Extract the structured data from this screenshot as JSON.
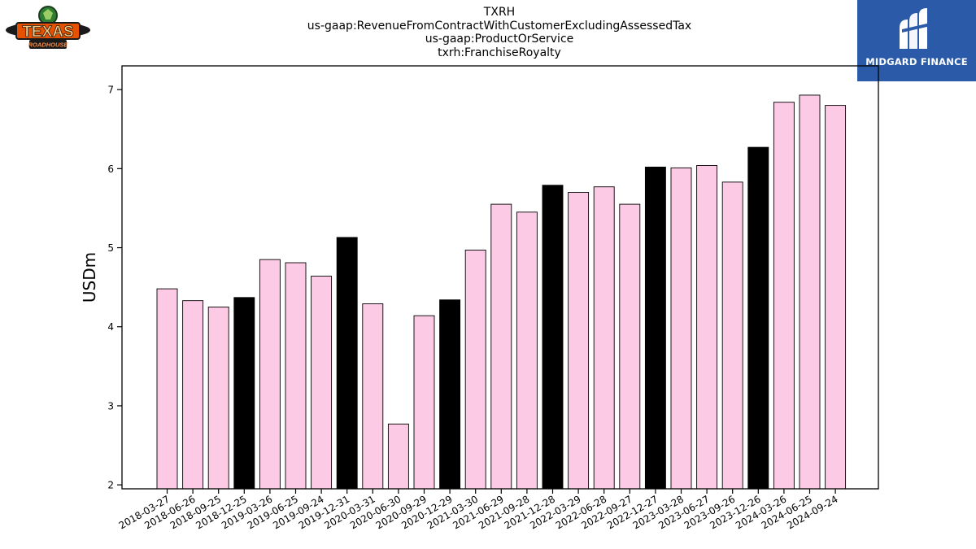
{
  "header": {
    "lines": [
      "TXRH",
      "us-gaap:RevenueFromContractWithCustomerExcludingAssessedTax",
      "us-gaap:ProductOrService",
      "txrh:FranchiseRoyalty"
    ]
  },
  "logos": {
    "left_text": "TEXAS",
    "left_subtext": "ROADHOUSE",
    "right_text": "MIDGARD FINANCE"
  },
  "colors": {
    "bar_default": "#fccae4",
    "bar_highlight": "#000000",
    "bar_edge": "#000000",
    "logo_right_bg": "#2b5ba8"
  },
  "chart_data": {
    "type": "bar",
    "ylabel": "USDm",
    "xlabel": "",
    "ylim": [
      1.95,
      7.3
    ],
    "yticks": [
      2,
      3,
      4,
      5,
      6,
      7
    ],
    "categories": [
      "2018-03-27",
      "2018-06-26",
      "2018-09-25",
      "2018-12-25",
      "2019-03-26",
      "2019-06-25",
      "2019-09-24",
      "2019-12-31",
      "2020-03-31",
      "2020-06-30",
      "2020-09-29",
      "2020-12-29",
      "2021-03-30",
      "2021-06-29",
      "2021-09-28",
      "2021-12-28",
      "2022-03-29",
      "2022-06-28",
      "2022-09-27",
      "2022-12-27",
      "2023-03-28",
      "2023-06-27",
      "2023-09-26",
      "2023-12-26",
      "2024-03-26",
      "2024-06-25",
      "2024-09-24"
    ],
    "values": [
      4.48,
      4.33,
      4.25,
      4.37,
      4.85,
      4.81,
      4.64,
      5.13,
      4.29,
      2.77,
      4.14,
      4.34,
      4.97,
      5.55,
      5.45,
      5.79,
      5.7,
      5.77,
      5.55,
      6.02,
      6.01,
      6.04,
      5.83,
      6.27,
      6.84,
      6.93,
      6.8
    ],
    "highlight": [
      false,
      false,
      false,
      true,
      false,
      false,
      false,
      true,
      false,
      false,
      false,
      true,
      false,
      false,
      false,
      true,
      false,
      false,
      false,
      true,
      false,
      false,
      false,
      true,
      false,
      false,
      false
    ]
  }
}
